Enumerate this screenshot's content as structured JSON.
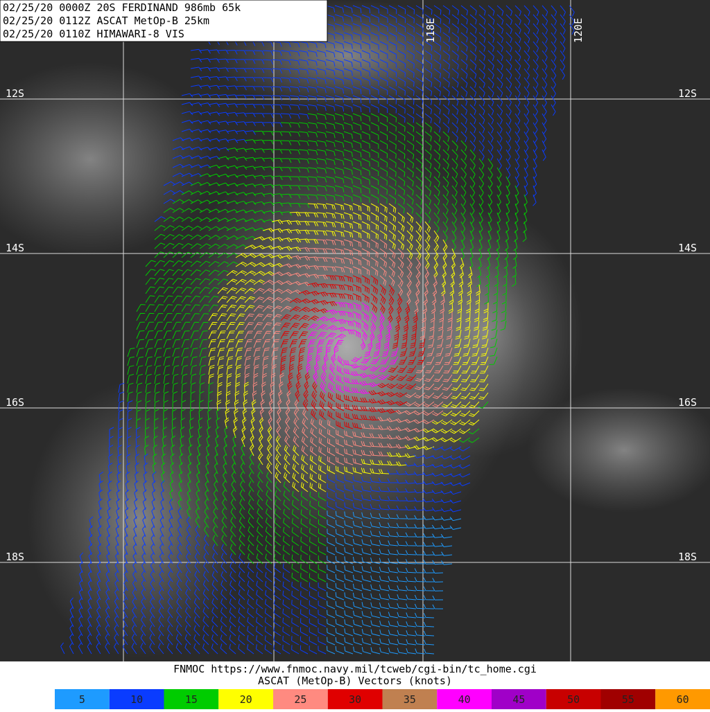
{
  "header": {
    "lines": [
      "02/25/20 0000Z  20S FERDINAND 986mb 65k",
      "02/25/20 0112Z  ASCAT MetOp-B 25km",
      "02/25/20 0110Z  HIMAWARI-8 VIS"
    ]
  },
  "map": {
    "lat_labels": [
      "12S",
      "14S",
      "16S",
      "18S"
    ],
    "lon_labels": [
      "118E",
      "120E"
    ]
  },
  "footer": {
    "source": "FNMOC https://www.fnmoc.navy.mil/tcweb/cgi-bin/tc_home.cgi",
    "caption": "ASCAT (MetOp-B) Vectors (knots)"
  },
  "legend": {
    "items": [
      {
        "label": "5",
        "color": "#1e9bff"
      },
      {
        "label": "10",
        "color": "#0a3cff"
      },
      {
        "label": "15",
        "color": "#00cc00"
      },
      {
        "label": "20",
        "color": "#ffff00"
      },
      {
        "label": "25",
        "color": "#ff8a80"
      },
      {
        "label": "30",
        "color": "#e00000"
      },
      {
        "label": "35",
        "color": "#c08050"
      },
      {
        "label": "40",
        "color": "#ff00ff"
      },
      {
        "label": "45",
        "color": "#a000c8"
      },
      {
        "label": "50",
        "color": "#c80000"
      },
      {
        "label": "55",
        "color": "#a00000"
      },
      {
        "label": "60",
        "color": "#ff9900"
      }
    ]
  }
}
